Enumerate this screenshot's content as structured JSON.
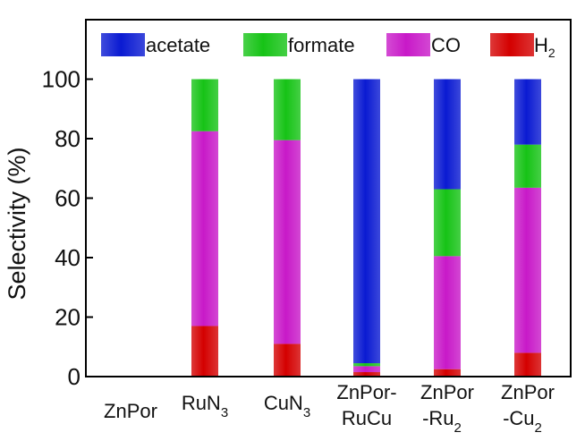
{
  "chart_data": {
    "type": "bar",
    "stacked": true,
    "title": "",
    "xlabel": "",
    "ylabel": "Selectivity (%)",
    "ylim": [
      0,
      120
    ],
    "yticks": [
      "0",
      "20",
      "40",
      "60",
      "80",
      "100"
    ],
    "grid": false,
    "legend_position": "top",
    "categories": [
      [
        "ZnPor"
      ],
      [
        "RuN",
        "3"
      ],
      [
        "CuN",
        "3"
      ],
      [
        "ZnPor-",
        "RuCu"
      ],
      [
        "ZnPor",
        "-Ru",
        "2"
      ],
      [
        "ZnPor",
        "-Cu",
        "2"
      ]
    ],
    "series": [
      {
        "name": "H",
        "sub": "2",
        "color": "#d40000",
        "values": [
          0,
          17,
          11,
          1.5,
          2.5,
          8
        ]
      },
      {
        "name": "CO",
        "color": "#c819c8",
        "values": [
          0,
          65.5,
          68.5,
          2,
          38,
          55.5
        ]
      },
      {
        "name": "formate",
        "color": "#16c316",
        "values": [
          0,
          17.5,
          20.5,
          1,
          22.5,
          14.5
        ]
      },
      {
        "name": "acetate",
        "color": "#0a1ad2",
        "values": [
          0,
          0,
          0,
          95.5,
          37,
          22
        ]
      }
    ],
    "legend_order": [
      "acetate",
      "formate",
      "CO",
      "H"
    ]
  }
}
